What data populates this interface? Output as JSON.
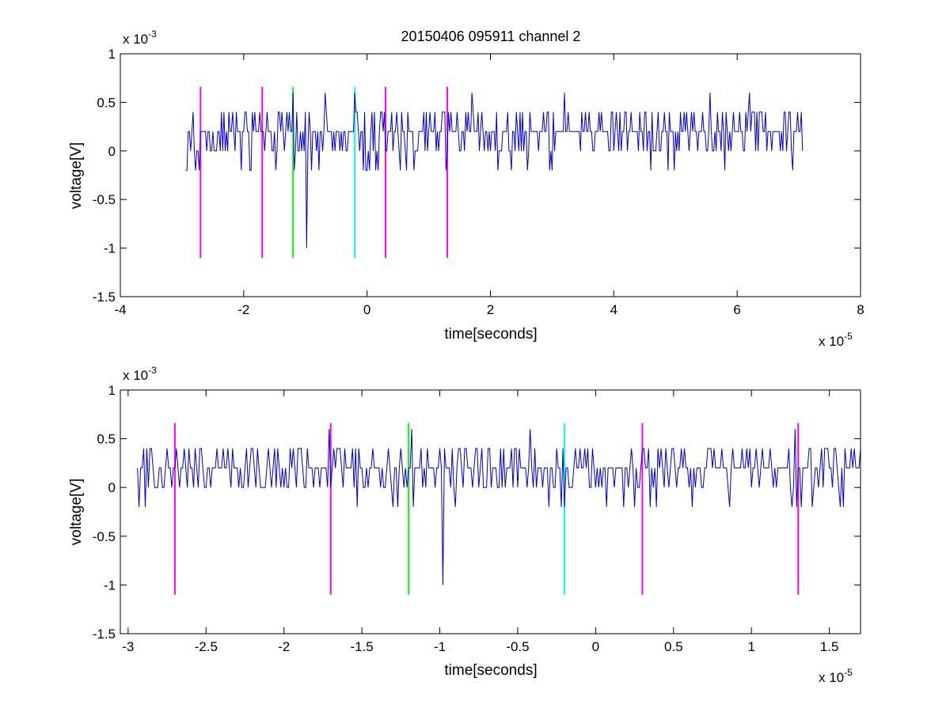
{
  "title": "20150406 095911 channel 2",
  "axis_style": {
    "axis_color": "#000000",
    "trace_color": "#0000cc"
  },
  "chart_data": [
    {
      "type": "line",
      "xlabel": "time[seconds]",
      "ylabel": "voltage[V]",
      "x_multiplier_label": {
        "base": "x 10",
        "power": "-5"
      },
      "y_multiplier_label": {
        "base": "x 10",
        "power": "-3"
      },
      "xlim": [
        -4,
        8
      ],
      "ylim": [
        -1.5,
        1
      ],
      "x_ticks": [
        -4,
        -2,
        0,
        2,
        4,
        6,
        8
      ],
      "x_tick_labels": [
        "-4",
        "-2",
        "0",
        "2",
        "4",
        "6",
        "8"
      ],
      "y_ticks": [
        -1.5,
        -1,
        -0.5,
        0,
        0.5,
        1
      ],
      "y_tick_labels": [
        "-1.5",
        "-1",
        "-0.5",
        "0",
        "0.5",
        "1"
      ],
      "grid": false,
      "series": [
        {
          "color": "#0000cc",
          "x_range": [
            -2.94,
            7.06
          ],
          "sample_step": 0.02,
          "levels": [
            -0.2,
            0,
            0.2,
            0.4
          ],
          "notable_points": [
            [
              -2.93,
              -0.2
            ],
            [
              -1.48,
              -0.2
            ],
            [
              -1.2,
              0.6
            ],
            [
              -0.98,
              -1.0
            ],
            [
              -0.68,
              0.6
            ],
            [
              -0.2,
              0.6
            ],
            [
              0.15,
              -0.2
            ],
            [
              0.65,
              -0.2
            ],
            [
              1.7,
              0.6
            ],
            [
              2.35,
              -0.2
            ],
            [
              3.2,
              0.6
            ],
            [
              5.55,
              0.6
            ],
            [
              6.2,
              0.6
            ],
            [
              6.9,
              -0.2
            ]
          ]
        }
      ],
      "markers": [
        {
          "x": -2.7,
          "color": "#ff00ff",
          "y_range": [
            -1.1,
            0.66
          ]
        },
        {
          "x": -1.7,
          "color": "#ff00ff",
          "y_range": [
            -1.1,
            0.66
          ]
        },
        {
          "x": -1.2,
          "color": "#00ff00",
          "y_range": [
            -1.1,
            0.66
          ]
        },
        {
          "x": -0.2,
          "color": "#00ffff",
          "y_range": [
            -1.1,
            0.66
          ]
        },
        {
          "x": 0.3,
          "color": "#ff00ff",
          "y_range": [
            -1.1,
            0.66
          ]
        },
        {
          "x": 1.3,
          "color": "#ff00ff",
          "y_range": [
            -1.1,
            0.66
          ]
        }
      ]
    },
    {
      "type": "line",
      "xlabel": "time[seconds]",
      "ylabel": "voltage[V]",
      "x_multiplier_label": {
        "base": "x 10",
        "power": "-5"
      },
      "y_multiplier_label": {
        "base": "x 10",
        "power": "-3"
      },
      "xlim": [
        -3.05,
        1.7
      ],
      "ylim": [
        -1.5,
        1
      ],
      "x_ticks": [
        -3,
        -2.5,
        -2,
        -1.5,
        -1,
        -0.5,
        0,
        0.5,
        1,
        1.5
      ],
      "x_tick_labels": [
        "-3",
        "-2.5",
        "-2",
        "-1.5",
        "-1",
        "-0.5",
        "0",
        "0.5",
        "1",
        "1.5"
      ],
      "y_ticks": [
        -1.5,
        -1,
        -0.5,
        0,
        0.5,
        1
      ],
      "y_tick_labels": [
        "-1.5",
        "-1",
        "-0.5",
        "0",
        "0.5",
        "1"
      ],
      "grid": false,
      "series": [
        {
          "color": "#0000cc",
          "x_range": [
            -2.94,
            1.7
          ],
          "sample_step": 0.01,
          "levels": [
            -0.2,
            0,
            0.2,
            0.4
          ],
          "notable_points": [
            [
              -2.93,
              -0.2
            ],
            [
              -2.9,
              0.4
            ],
            [
              -1.71,
              0.6
            ],
            [
              -1.3,
              -0.2
            ],
            [
              -1.18,
              0.6
            ],
            [
              -1.17,
              -0.2
            ],
            [
              -0.98,
              -1.0
            ],
            [
              -0.42,
              0.6
            ],
            [
              -0.2,
              -0.2
            ],
            [
              1.28,
              0.6
            ],
            [
              1.29,
              -0.2
            ],
            [
              1.57,
              -0.2
            ],
            [
              1.66,
              0.4
            ]
          ]
        }
      ],
      "markers": [
        {
          "x": -2.7,
          "color": "#ff00ff",
          "y_range": [
            -1.1,
            0.66
          ]
        },
        {
          "x": -1.7,
          "color": "#ff00ff",
          "y_range": [
            -1.1,
            0.66
          ]
        },
        {
          "x": -1.2,
          "color": "#00ff00",
          "y_range": [
            -1.1,
            0.66
          ]
        },
        {
          "x": -0.2,
          "color": "#00ffff",
          "y_range": [
            -1.1,
            0.66
          ]
        },
        {
          "x": 0.3,
          "color": "#ff00ff",
          "y_range": [
            -1.1,
            0.66
          ]
        },
        {
          "x": 1.3,
          "color": "#ff00ff",
          "y_range": [
            -1.1,
            0.66
          ]
        }
      ]
    }
  ]
}
